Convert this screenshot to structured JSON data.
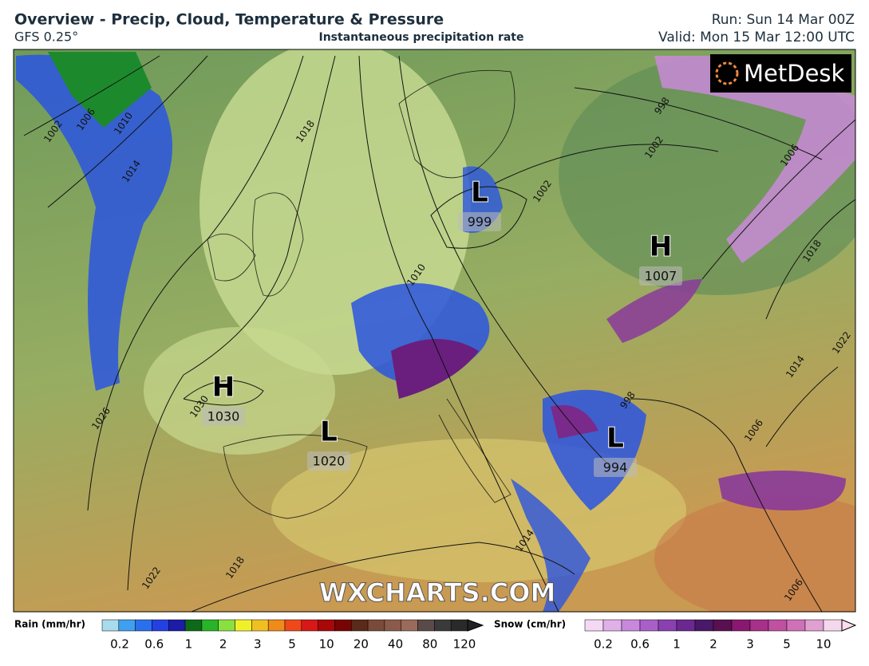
{
  "header": {
    "title": "Overview - Precip, Cloud, Temperature & Pressure",
    "model": "GFS 0.25°",
    "subtitle": "Instantaneous precipitation rate",
    "run": "Run: Sun 14 Mar 00Z",
    "valid": "Valid: Mon 15 Mar 12:00 UTC"
  },
  "map": {
    "logo": "MetDesk",
    "watermark": "WXCHARTS.COM",
    "pressure_centers": [
      {
        "symbol": "H",
        "value": 1030
      },
      {
        "symbol": "L",
        "value": 1020
      },
      {
        "symbol": "L",
        "value": 999
      },
      {
        "symbol": "H",
        "value": 1007
      },
      {
        "symbol": "L",
        "value": 994
      }
    ],
    "isobar_labels": [
      1002,
      1006,
      1010,
      1014,
      1018,
      1010,
      1002,
      1002,
      998,
      1006,
      1018,
      1022,
      1014,
      998,
      1006,
      1026,
      1030,
      1014,
      1018,
      1022,
      1006
    ]
  },
  "legend": {
    "rain": {
      "title": "Rain (mm/hr)",
      "ticks": [
        "0.2",
        "0.6",
        "1",
        "2",
        "3",
        "5",
        "10",
        "20",
        "40",
        "80",
        "120"
      ]
    },
    "snow": {
      "title": "Snow (cm/hr)",
      "ticks": [
        "0.2",
        "0.6",
        "1",
        "2",
        "3",
        "5",
        "10"
      ]
    }
  }
}
